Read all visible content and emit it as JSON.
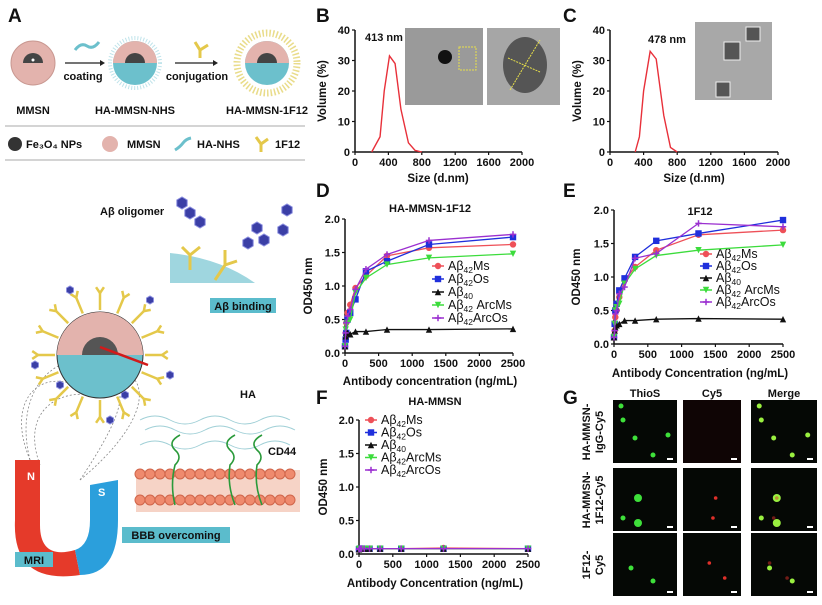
{
  "panel_labels": {
    "A": "A",
    "B": "B",
    "C": "C",
    "D": "D",
    "E": "E",
    "F": "F",
    "G": "G"
  },
  "panel_a": {
    "steps": [
      "coating",
      "conjugation"
    ],
    "products": [
      "MMSN",
      "HA-MMSN-NHS",
      "HA-MMSN-1F12"
    ],
    "legend": [
      "Fe₃O₄ NPs",
      "MMSN",
      "HA-NHS",
      "1F12"
    ],
    "oligomer_label": "Aβ oligomer",
    "binding_label": "Aβ binding",
    "ha_label": "HA",
    "cd44_label": "CD44",
    "bbb_label": "BBB overcoming",
    "mri_label": "MRI",
    "magnet": {
      "north": "N",
      "south": "S"
    },
    "colors": {
      "mmsn": "#e3b3ad",
      "ha": "#6cc0cc",
      "antibody": "#e4c84a",
      "oligomer": "#3b3fa6",
      "box": "#5bbccc"
    }
  },
  "chart_data": [
    {
      "panel": "B",
      "type": "line",
      "xlabel": "Size (d.nm)",
      "ylabel": "Volume (%)",
      "xlim": [
        0,
        2000
      ],
      "ylim": [
        0,
        40
      ],
      "xticks": [
        "0",
        "400",
        "800",
        "1200",
        "1600",
        "2000"
      ],
      "yticks": [
        "0",
        "10",
        "20",
        "30",
        "40"
      ],
      "annotation": "413 nm",
      "color": "#e8303a",
      "x": [
        200,
        300,
        350,
        413,
        480,
        550,
        640,
        720,
        800
      ],
      "y": [
        0,
        5,
        20,
        31.5,
        29,
        14,
        3,
        0.5,
        0
      ]
    },
    {
      "panel": "C",
      "type": "line",
      "xlabel": "Size (d.nm)",
      "ylabel": "Volume (%)",
      "xlim": [
        0,
        2000
      ],
      "ylim": [
        0,
        40
      ],
      "xticks": [
        "0",
        "400",
        "800",
        "1200",
        "1600",
        "2000"
      ],
      "yticks": [
        "0",
        "10",
        "20",
        "30",
        "40"
      ],
      "annotation": "478 nm",
      "color": "#e8303a",
      "x": [
        300,
        350,
        400,
        478,
        550,
        640,
        720,
        800
      ],
      "y": [
        0,
        5,
        20,
        33,
        30.5,
        12,
        1.5,
        0
      ]
    },
    {
      "panel": "D",
      "type": "line",
      "title": "HA-MMSN-1F12",
      "xlabel": "Antibody concentration (ng/mL)",
      "ylabel": "OD450 nm",
      "xlim": [
        0,
        2500
      ],
      "ylim": [
        0,
        2
      ],
      "xticks": [
        "0",
        "500",
        "1000",
        "1500",
        "2000",
        "2500"
      ],
      "yticks": [
        "0.0",
        "0.5",
        "1.0",
        "1.5",
        "2.0"
      ],
      "legend": "right",
      "x": [
        0,
        9.8,
        19.5,
        39,
        78,
        156,
        312,
        625,
        1250,
        2500
      ],
      "series": [
        {
          "label": {
            "base": "Aβ",
            "sub": "42",
            "suffix": "Ms"
          },
          "color": "#ee5058",
          "marker": "circle",
          "values": [
            0.1,
            0.3,
            0.45,
            0.6,
            0.72,
            0.97,
            1.15,
            1.45,
            1.57,
            1.62
          ]
        },
        {
          "label": {
            "base": "Aβ",
            "sub": "42",
            "suffix": "Os"
          },
          "color": "#1f2fdc",
          "marker": "square",
          "values": [
            0.1,
            0.2,
            0.3,
            0.5,
            0.6,
            0.8,
            1.22,
            1.37,
            1.62,
            1.73
          ]
        },
        {
          "label": {
            "base": "Aβ",
            "sub": "40",
            "suffix": ""
          },
          "color": "#111111",
          "marker": "triangle",
          "values": [
            0.1,
            0.25,
            0.3,
            0.3,
            0.28,
            0.32,
            0.32,
            0.35,
            0.35,
            0.36
          ]
        },
        {
          "label": {
            "base": "Aβ",
            "sub": "42",
            "suffix": " ArcMs"
          },
          "color": "#3cdc3c",
          "marker": "tri-down",
          "values": [
            0.1,
            0.35,
            0.42,
            0.45,
            0.5,
            0.9,
            1.12,
            1.32,
            1.42,
            1.48
          ]
        },
        {
          "label": {
            "base": "Aβ",
            "sub": "42",
            "suffix": "ArcOs"
          },
          "color": "#9b30d0",
          "marker": "plus",
          "values": [
            0.1,
            0.3,
            0.45,
            0.55,
            0.65,
            0.95,
            1.25,
            1.47,
            1.68,
            1.77
          ]
        }
      ]
    },
    {
      "panel": "E",
      "type": "line",
      "title": "1F12",
      "xlabel": "Antibody Concentration (ng/mL)",
      "ylabel": "OD450 nm",
      "xlim": [
        0,
        2500
      ],
      "ylim": [
        0,
        2
      ],
      "xticks": [
        "0",
        "500",
        "1000",
        "1500",
        "2000",
        "2500"
      ],
      "yticks": [
        "0.0",
        "0.5",
        "1.0",
        "1.5",
        "2.0"
      ],
      "legend": "right",
      "x": [
        0,
        9.8,
        19.5,
        39,
        78,
        156,
        312,
        625,
        1250,
        2500
      ],
      "series": [
        {
          "label": {
            "base": "Aβ",
            "sub": "42",
            "suffix": "Ms"
          },
          "color": "#ee5058",
          "marker": "circle",
          "values": [
            0.1,
            0.2,
            0.4,
            0.5,
            0.7,
            0.95,
            1.15,
            1.4,
            1.63,
            1.7
          ]
        },
        {
          "label": {
            "base": "Aβ",
            "sub": "42",
            "suffix": "Os"
          },
          "color": "#1f2fdc",
          "marker": "square",
          "values": [
            0.1,
            0.3,
            0.5,
            0.6,
            0.8,
            0.98,
            1.3,
            1.54,
            1.65,
            1.85
          ]
        },
        {
          "label": {
            "base": "Aβ",
            "sub": "40",
            "suffix": ""
          },
          "color": "#111111",
          "marker": "triangle",
          "values": [
            0.1,
            0.2,
            0.25,
            0.28,
            0.3,
            0.35,
            0.35,
            0.37,
            0.38,
            0.37
          ]
        },
        {
          "label": {
            "base": "Aβ",
            "sub": "42",
            "suffix": " ArcMs"
          },
          "color": "#3cdc3c",
          "marker": "tri-down",
          "values": [
            0.1,
            0.3,
            0.5,
            0.55,
            0.6,
            0.9,
            1.12,
            1.32,
            1.4,
            1.48
          ]
        },
        {
          "label": {
            "base": "Aβ",
            "sub": "42",
            "suffix": "ArcOs"
          },
          "color": "#9b30d0",
          "marker": "plus",
          "values": [
            0.1,
            0.2,
            0.45,
            0.5,
            0.75,
            0.85,
            1.28,
            1.35,
            1.8,
            1.75
          ]
        }
      ]
    },
    {
      "panel": "F",
      "type": "line",
      "title": "HA-MMSN",
      "xlabel": "Antibody Concentration (ng/mL)",
      "ylabel": "OD450 nm",
      "xlim": [
        0,
        2500
      ],
      "ylim": [
        0,
        2
      ],
      "xticks": [
        "0",
        "500",
        "1000",
        "1500",
        "2000",
        "2500"
      ],
      "yticks": [
        "0.0",
        "0.5",
        "1.0",
        "1.5",
        "2.0"
      ],
      "legend": "top-left",
      "x": [
        0,
        9.8,
        19.5,
        39,
        78,
        156,
        312,
        625,
        1250,
        2500
      ],
      "series": [
        {
          "label": {
            "base": "Aβ",
            "sub": "42",
            "suffix": "Ms"
          },
          "color": "#ee5058",
          "marker": "circle",
          "values": [
            0.07,
            0.08,
            0.08,
            0.08,
            0.08,
            0.08,
            0.08,
            0.08,
            0.09,
            0.08
          ]
        },
        {
          "label": {
            "base": "Aβ",
            "sub": "42",
            "suffix": "Os"
          },
          "color": "#1f2fdc",
          "marker": "square",
          "values": [
            0.07,
            0.08,
            0.08,
            0.08,
            0.08,
            0.08,
            0.08,
            0.08,
            0.08,
            0.08
          ]
        },
        {
          "label": {
            "base": "Aβ",
            "sub": "40",
            "suffix": ""
          },
          "color": "#111111",
          "marker": "triangle",
          "values": [
            0.07,
            0.08,
            0.08,
            0.08,
            0.08,
            0.08,
            0.08,
            0.08,
            0.08,
            0.08
          ]
        },
        {
          "label": {
            "base": "Aβ",
            "sub": "42",
            "suffix": "ArcMs"
          },
          "color": "#3cdc3c",
          "marker": "tri-down",
          "values": [
            0.07,
            0.08,
            0.08,
            0.08,
            0.08,
            0.08,
            0.08,
            0.08,
            0.08,
            0.08
          ]
        },
        {
          "label": {
            "base": "Aβ",
            "sub": "42",
            "suffix": "ArcOs"
          },
          "color": "#9b30d0",
          "marker": "plus",
          "values": [
            0.07,
            0.08,
            0.08,
            0.08,
            0.08,
            0.08,
            0.08,
            0.08,
            0.08,
            0.08
          ]
        }
      ]
    }
  ],
  "panel_g": {
    "columns": [
      "ThioS",
      "Cy5",
      "Merge"
    ],
    "rows": [
      [
        "HA-MMSN-",
        "IgG-Cy5"
      ],
      [
        "HA-MMSN-",
        "1F12-Cy5"
      ],
      [
        "1F12-",
        "Cy5"
      ]
    ]
  }
}
